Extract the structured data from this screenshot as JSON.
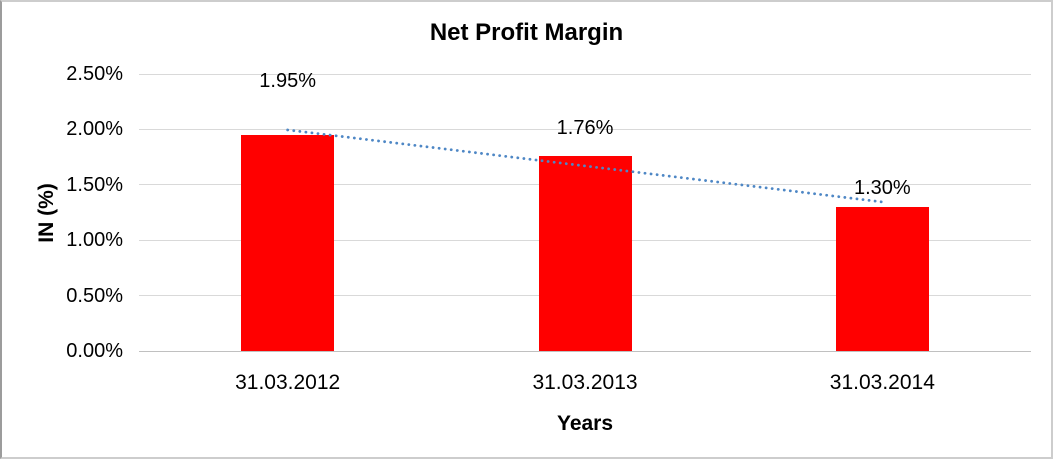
{
  "chart_data": {
    "type": "bar",
    "title": "Net Profit Margin",
    "xlabel": "Years",
    "ylabel": "IN (%)",
    "categories": [
      "31.03.2012",
      "31.03.2013",
      "31.03.2014"
    ],
    "values": [
      1.95,
      1.76,
      1.3
    ],
    "value_labels": [
      "1.95%",
      "1.76%",
      "1.30%"
    ],
    "yticks": [
      0.0,
      0.5,
      1.0,
      1.5,
      2.0,
      2.5
    ],
    "ytick_labels": [
      "0.00%",
      "0.50%",
      "1.00%",
      "1.50%",
      "2.00%",
      "2.50%"
    ],
    "ylim": [
      0,
      2.5
    ],
    "grid": true,
    "legend": false,
    "bar_color": "#FF0000",
    "trendline": {
      "type": "linear",
      "style": "dotted",
      "color": "#4E87C5"
    }
  }
}
